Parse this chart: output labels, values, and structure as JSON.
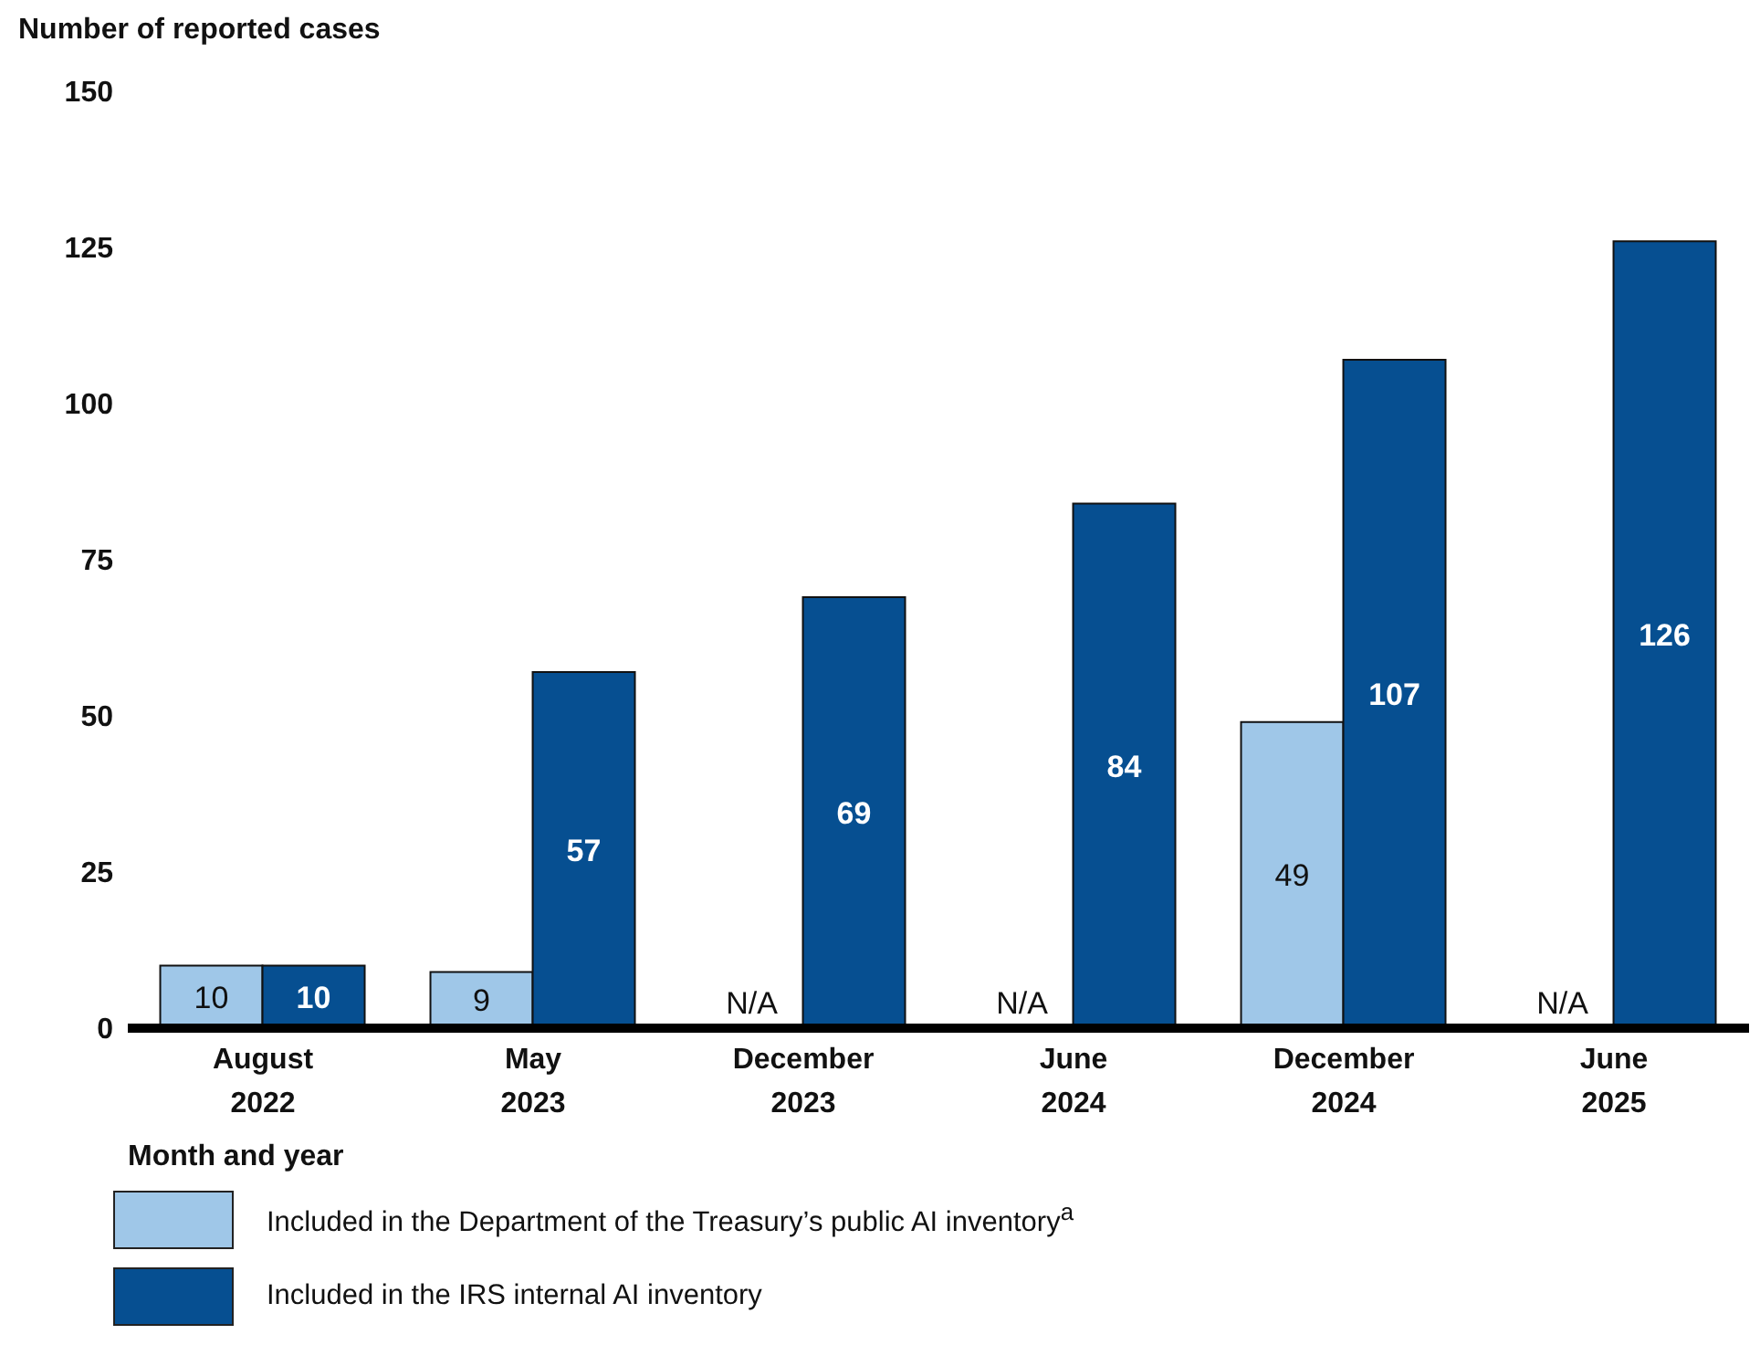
{
  "chart_data": {
    "type": "bar",
    "ylabel": "Number of reported cases",
    "xlabel": "Month and year",
    "categories": [
      "August 2022",
      "May 2023",
      "December 2023",
      "June 2024",
      "December 2024",
      "June 2025"
    ],
    "series": [
      {
        "name": "Included in the Department of the Treasury’s public AI inventory$^{a}$",
        "color": "#9fc7e8",
        "values": [
          10,
          9,
          null,
          null,
          49,
          null
        ],
        "value_labels": [
          "10",
          "9",
          "N/A",
          "N/A",
          "49",
          "N/A"
        ]
      },
      {
        "name": "Included in the IRS internal AI inventory",
        "color": "#064f91",
        "values": [
          10,
          57,
          69,
          84,
          107,
          126
        ],
        "value_labels": [
          "10",
          "57",
          "69",
          "84",
          "107",
          "126"
        ]
      }
    ],
    "ylim": [
      0,
      150
    ],
    "yticks": [
      0,
      25,
      50,
      75,
      100,
      125,
      150
    ],
    "grid": false,
    "legend": "bottom"
  }
}
